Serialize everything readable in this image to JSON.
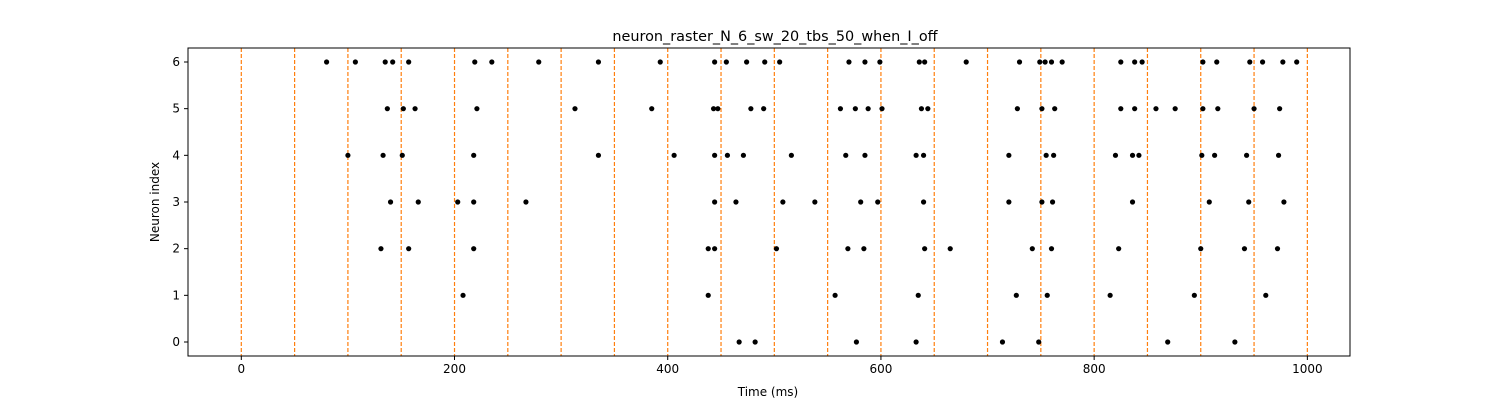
{
  "chart_data": {
    "type": "scatter",
    "title": "neuron_raster_N_6_sw_20_tbs_50_when_I_off",
    "xlabel": "Time (ms)",
    "ylabel": "Neuron index",
    "xlim": [
      -50,
      1040
    ],
    "ylim": [
      -0.3,
      6.3
    ],
    "xticks": [
      0,
      200,
      400,
      600,
      800,
      1000
    ],
    "yticks": [
      0,
      1,
      2,
      3,
      4,
      5,
      6
    ],
    "grid": false,
    "marker_color": "#000000",
    "vline_color": "#ff7f0e",
    "vlines": [
      0,
      50,
      100,
      150,
      200,
      250,
      300,
      350,
      400,
      450,
      500,
      550,
      600,
      650,
      700,
      750,
      800,
      850,
      900,
      950,
      1000
    ],
    "spikes": [
      {
        "neuron": 6,
        "times": [
          80,
          107,
          135,
          142,
          157,
          219,
          235,
          279,
          335,
          393,
          444,
          455,
          474,
          491,
          505,
          570,
          585,
          599,
          636,
          641,
          680,
          730,
          749,
          754,
          760,
          770,
          825,
          838,
          845,
          902,
          915,
          946,
          958,
          977,
          990
        ]
      },
      {
        "neuron": 5,
        "times": [
          137,
          152,
          163,
          221,
          313,
          385,
          443,
          447,
          478,
          490,
          562,
          576,
          588,
          601,
          638,
          644,
          728,
          751,
          763,
          825,
          838,
          858,
          876,
          902,
          916,
          950,
          974
        ]
      },
      {
        "neuron": 4,
        "times": [
          100,
          133,
          151,
          218,
          335,
          406,
          444,
          456,
          471,
          516,
          567,
          585,
          633,
          640,
          720,
          755,
          762,
          820,
          836,
          842,
          901,
          913,
          943,
          973
        ]
      },
      {
        "neuron": 3,
        "times": [
          140,
          166,
          203,
          218,
          267,
          444,
          464,
          508,
          538,
          581,
          597,
          640,
          720,
          751,
          761,
          836,
          908,
          945,
          978
        ]
      },
      {
        "neuron": 2,
        "times": [
          131,
          157,
          218,
          438,
          444,
          502,
          569,
          584,
          641,
          665,
          742,
          760,
          823,
          900,
          941,
          972
        ]
      },
      {
        "neuron": 1,
        "times": [
          208,
          438,
          557,
          635,
          727,
          756,
          815,
          894,
          961
        ]
      },
      {
        "neuron": 0,
        "times": [
          467,
          482,
          577,
          633,
          714,
          748,
          869,
          932
        ]
      }
    ]
  }
}
